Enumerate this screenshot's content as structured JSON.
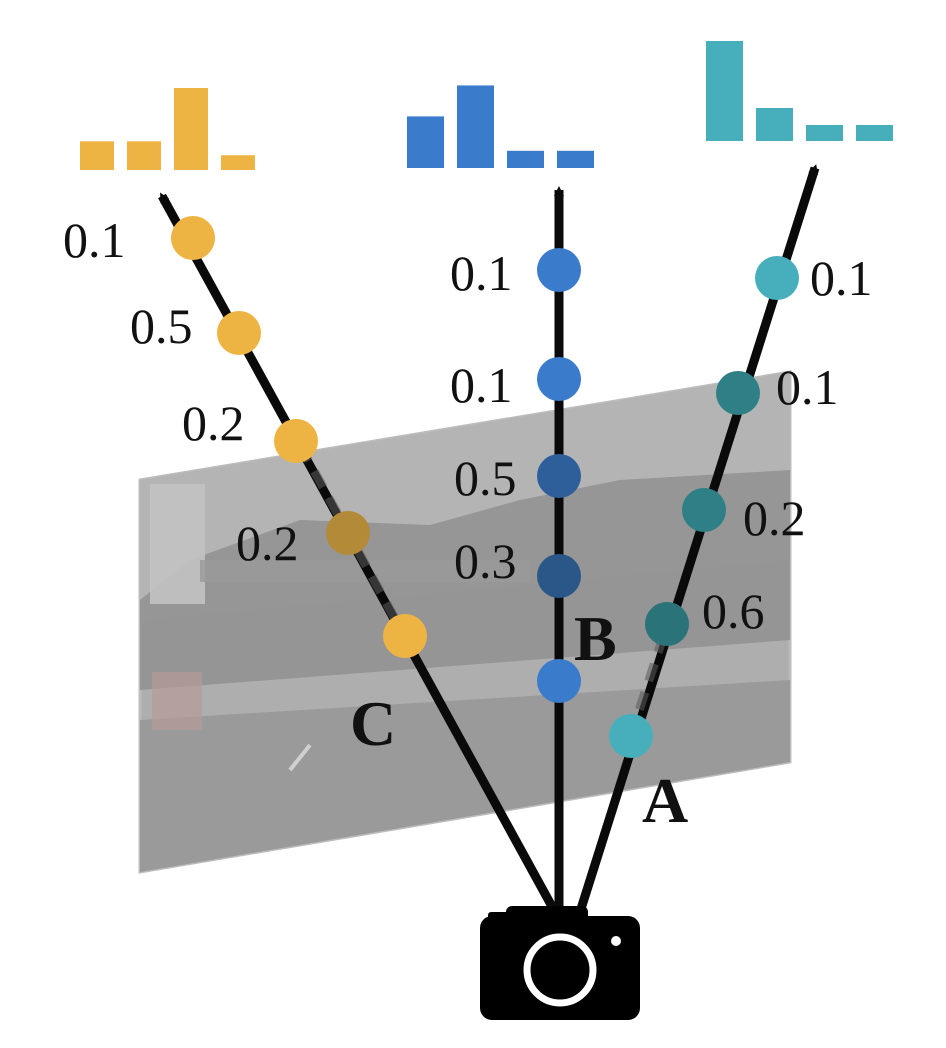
{
  "colors": {
    "ray_c": "#EDB443",
    "ray_b": "#3A7BCB",
    "ray_a": "#47AEBC",
    "ray_line": "#0a0a0a",
    "image_plane": "#9c9c9c",
    "camera": "#000000"
  },
  "icons": {
    "camera": "camera-icon",
    "image_plane": "street-photo"
  },
  "rays": [
    {
      "id": "c",
      "point_label": "C",
      "weights": [
        "0.1",
        "0.5",
        "0.2",
        "0.2"
      ],
      "histogram": [
        0.35,
        0.35,
        1.0,
        0.18
      ]
    },
    {
      "id": "b",
      "point_label": "B",
      "weights": [
        "0.1",
        "0.1",
        "0.5",
        "0.3"
      ],
      "histogram": [
        0.6,
        0.96,
        0.2,
        0.2
      ]
    },
    {
      "id": "a",
      "point_label": "A",
      "weights": [
        "0.1",
        "0.1",
        "0.2",
        "0.6"
      ],
      "histogram": [
        1.0,
        0.33,
        0.16,
        0.16
      ]
    }
  ]
}
